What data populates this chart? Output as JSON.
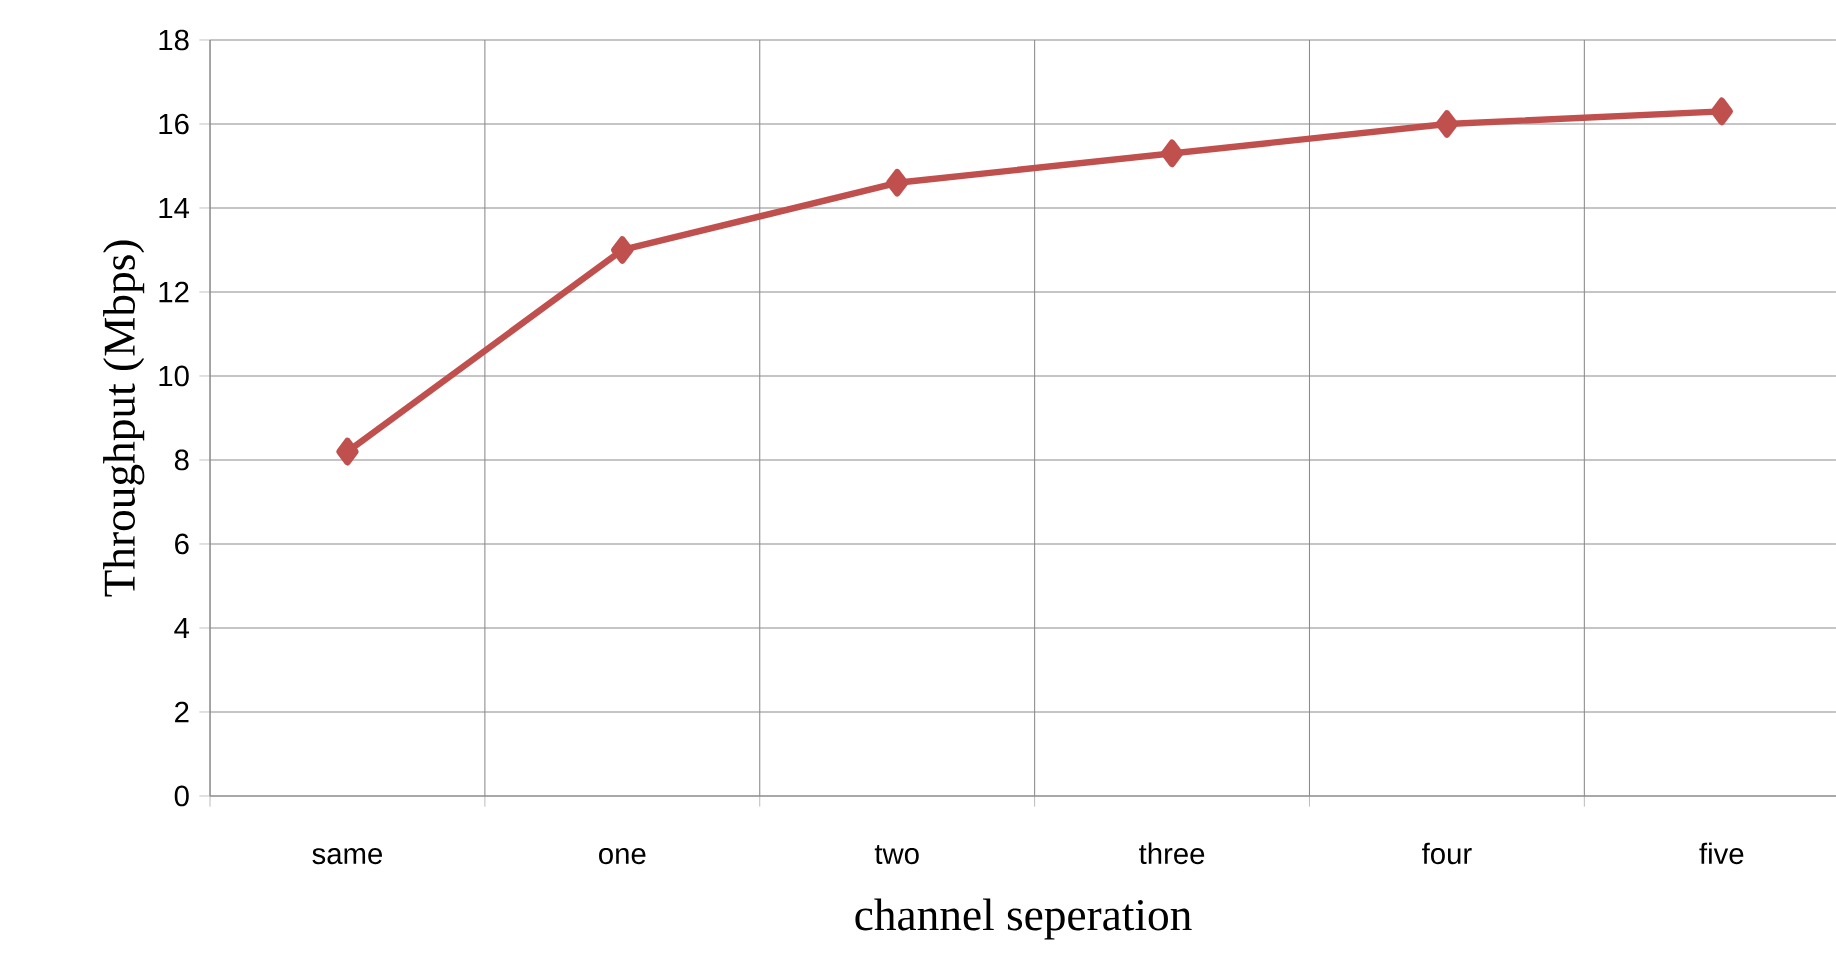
{
  "chart_data": {
    "type": "line",
    "xlabel": "channel seperation",
    "ylabel": "Throughput (Mbps)",
    "categories": [
      "same",
      "one",
      "two",
      "three",
      "four",
      "five"
    ],
    "series": [
      {
        "color": "#c0504d",
        "values": [
          8.2,
          13.0,
          14.6,
          15.3,
          16.0,
          16.3
        ]
      }
    ],
    "ylim": [
      0,
      18
    ],
    "yticks": [
      0,
      2,
      4,
      6,
      8,
      10,
      12,
      14,
      16,
      18
    ],
    "grid": true,
    "marker": "diamond",
    "line_style": "solid"
  }
}
